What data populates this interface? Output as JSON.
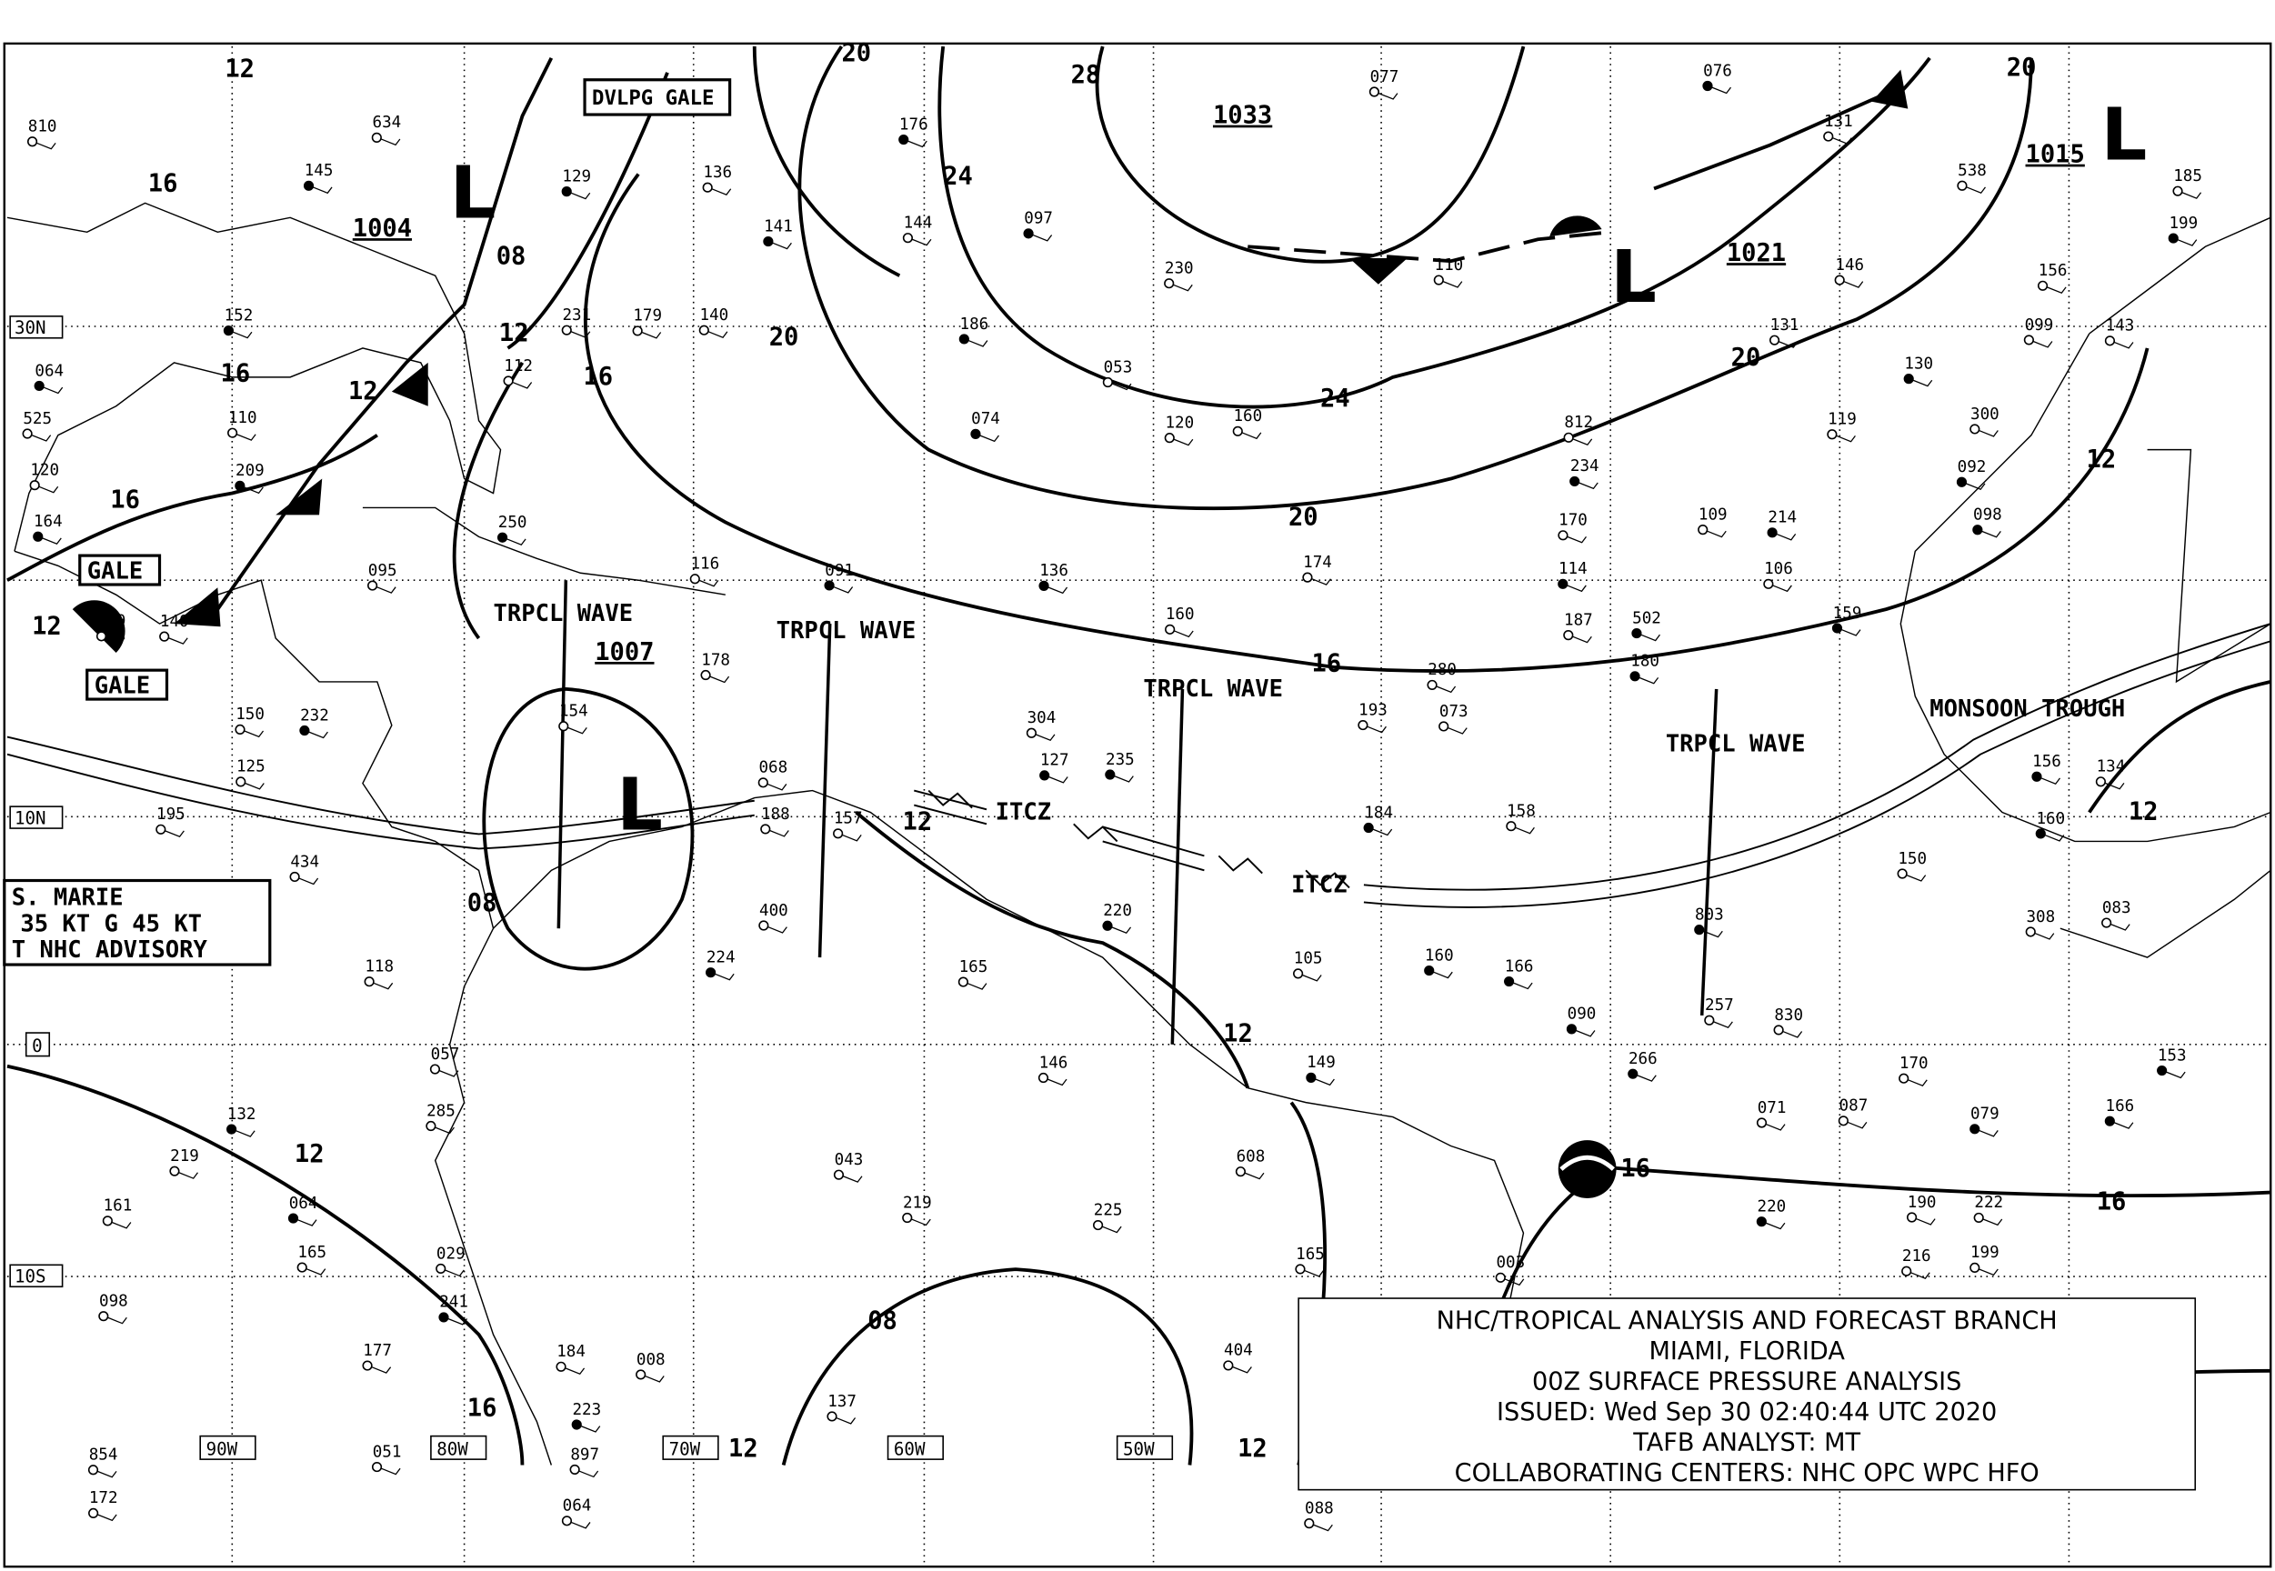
{
  "map": {
    "title_block": {
      "line1": "NHC/TROPICAL ANALYSIS AND FORECAST BRANCH",
      "line2": "MIAMI, FLORIDA",
      "line3": "00Z SURFACE PRESSURE ANALYSIS",
      "line4": "ISSUED: Wed Sep 30 02:40:44 UTC 2020",
      "line5": "TAFB ANALYST: MT",
      "line6": "COLLABORATING CENTERS: NHC OPC WPC HFO"
    },
    "storm_box": {
      "line1": "S. MARIE",
      "line2": "35 KT G 45 KT",
      "line3": "T NHC ADVISORY"
    },
    "lat_labels": [
      "30N",
      "10N",
      "0",
      "10S"
    ],
    "lon_labels": [
      "90W",
      "80W",
      "70W",
      "60W",
      "50W"
    ],
    "pressure_centers": [
      {
        "type": "L",
        "value": "1004"
      },
      {
        "type": "L",
        "value": "1007"
      },
      {
        "type": "H",
        "value": "1033"
      },
      {
        "type": "L",
        "value": "1021"
      },
      {
        "type": "L",
        "value": "1015"
      }
    ],
    "isobar_labels": [
      "12",
      "16",
      "08",
      "12",
      "16",
      "12",
      "16",
      "12",
      "20",
      "24",
      "28",
      "20",
      "24",
      "20",
      "16",
      "20",
      "16",
      "12",
      "12",
      "12",
      "08",
      "12",
      "16",
      "16",
      "16",
      "08",
      "12",
      "12",
      "12",
      "20"
    ],
    "features": {
      "gale1": "GALE",
      "gale2": "GALE",
      "dvlpg_gale": "DVLPG GALE",
      "tropical_waves": [
        "TRPCL WAVE",
        "TRPCL WAVE",
        "TRPCL WAVE",
        "TRPCL WAVE"
      ],
      "itcz": [
        "ITCZ",
        "ITCZ"
      ],
      "monsoon_trough": "MONSOON TROUGH"
    },
    "observations": [
      "129",
      "140",
      "143",
      "149",
      "161",
      "150",
      "166",
      "170",
      "190",
      "184",
      "195",
      "193",
      "186",
      "187",
      "172",
      "160",
      "158",
      "154",
      "152",
      "136",
      "140",
      "141",
      "137",
      "131",
      "130",
      "125",
      "120",
      "166",
      "177",
      "219",
      "159",
      "160",
      "160",
      "209",
      "219",
      "280",
      "241",
      "300",
      "285",
      "266",
      "222",
      "225",
      "214",
      "170",
      "188",
      "199",
      "184",
      "129",
      "176",
      "165",
      "174",
      "156",
      "179",
      "165",
      "164",
      "146",
      "165",
      "180",
      "150",
      "157",
      "145",
      "257",
      "854",
      "250",
      "230",
      "525",
      "232",
      "134",
      "144",
      "160",
      "156",
      "185",
      "220",
      "216",
      "608",
      "092",
      "400",
      "098",
      "235",
      "231",
      "106",
      "091",
      "095",
      "120",
      "127",
      "110",
      "105",
      "223",
      "064",
      "053",
      "136",
      "634",
      "119",
      "074",
      "073",
      "083",
      "098",
      "110",
      "118",
      "132",
      "178",
      "199",
      "114",
      "146",
      "109",
      "803",
      "099",
      "077",
      "090",
      "088",
      "308",
      "097",
      "538",
      "051",
      "064",
      "071",
      "812",
      "076",
      "043",
      "087",
      "502",
      "404",
      "304",
      "064",
      "057",
      "068",
      "079",
      "003",
      "008",
      "224",
      "116",
      "112",
      "220",
      "830",
      "131",
      "153",
      "434",
      "029",
      "234",
      "810",
      "897"
    ]
  }
}
